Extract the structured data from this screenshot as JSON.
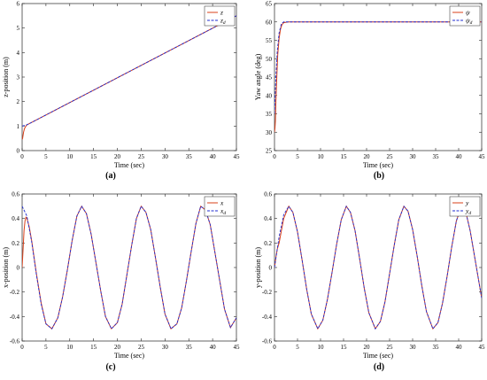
{
  "chart_data": [
    {
      "id": "a",
      "type": "line",
      "caption": "(a)",
      "xlabel": "Time (sec)",
      "ylabel": "z-position (m)",
      "xlim": [
        0,
        45
      ],
      "ylim": [
        0,
        6
      ],
      "xticks": [
        0,
        5,
        10,
        15,
        20,
        25,
        30,
        35,
        40,
        45
      ],
      "yticks": [
        0,
        1,
        2,
        3,
        4,
        5,
        6
      ],
      "grid": false,
      "legend_position": "top-right",
      "series": [
        {
          "name": "z",
          "legend": "z",
          "sub": "",
          "color": "#d9401a",
          "dash": "solid",
          "x": [
            0,
            0.1,
            0.3,
            0.5,
            0.8,
            1.0,
            1.5,
            2,
            45
          ],
          "y": [
            0.45,
            0.5,
            0.75,
            0.9,
            1.0,
            1.05,
            1.1,
            1.15,
            5.5
          ]
        },
        {
          "name": "z_d",
          "legend": "z",
          "sub": "d",
          "color": "#1f2bd1",
          "dash": "dash",
          "x": [
            0,
            1,
            2,
            45
          ],
          "y": [
            1.0,
            1.05,
            1.15,
            5.5
          ]
        }
      ]
    },
    {
      "id": "b",
      "type": "line",
      "caption": "(b)",
      "xlabel": "Time (sec)",
      "ylabel": "Yaw angle (deg)",
      "xlim": [
        0,
        45
      ],
      "ylim": [
        25,
        65
      ],
      "xticks": [
        0,
        5,
        10,
        15,
        20,
        25,
        30,
        35,
        40,
        45
      ],
      "yticks": [
        25,
        30,
        35,
        40,
        45,
        50,
        55,
        60,
        65
      ],
      "grid": false,
      "legend_position": "top-right",
      "series": [
        {
          "name": "psi",
          "legend": "ψ",
          "sub": "",
          "color": "#d9401a",
          "dash": "solid",
          "x": [
            0,
            0.1,
            0.2,
            0.3,
            0.5,
            0.7,
            1.0,
            1.3,
            1.6,
            2.0,
            3.0,
            45
          ],
          "y": [
            30,
            31,
            33,
            38,
            45,
            51,
            55.5,
            58,
            59.2,
            59.8,
            60,
            60
          ]
        },
        {
          "name": "psi_d",
          "legend": "ψ",
          "sub": "d",
          "color": "#1f2bd1",
          "dash": "dash",
          "x": [
            0,
            0.3,
            0.6,
            1.0,
            1.5,
            2.0,
            45
          ],
          "y": [
            35,
            45,
            52,
            57,
            59.5,
            60,
            60
          ]
        }
      ]
    },
    {
      "id": "c",
      "type": "line",
      "caption": "(c)",
      "xlabel": "Time (sec)",
      "ylabel": "x-position (m)",
      "xlim": [
        0,
        45
      ],
      "ylim": [
        -0.6,
        0.6
      ],
      "xticks": [
        0,
        5,
        10,
        15,
        20,
        25,
        30,
        35,
        40,
        45
      ],
      "yticks": [
        -0.6,
        -0.4,
        -0.2,
        0,
        0.2,
        0.4,
        0.6
      ],
      "grid": false,
      "legend_position": "top-right",
      "series": [
        {
          "name": "x",
          "legend": "x",
          "sub": "",
          "color": "#d9401a",
          "dash": "solid",
          "x": [
            0,
            0.2,
            0.4,
            0.6,
            0.8,
            1.0,
            1.5,
            2,
            3,
            4,
            5,
            6.25,
            7.5,
            8.5,
            9.5,
            10.5,
            11.5,
            12.5,
            13.5,
            14.5,
            15.5,
            16.5,
            17.5,
            18.75,
            20,
            21,
            22,
            23,
            24,
            25,
            26,
            27,
            28,
            29,
            30,
            31.25,
            32.5,
            33.5,
            34.5,
            35.5,
            36.5,
            37.5,
            38.5,
            39.5,
            40.5,
            41.5,
            42.5,
            43.75,
            45
          ],
          "y": [
            0.0,
            0.15,
            0.3,
            0.38,
            0.41,
            0.4,
            0.33,
            0.22,
            -0.05,
            -0.29,
            -0.46,
            -0.5,
            -0.41,
            -0.24,
            -0.02,
            0.22,
            0.42,
            0.5,
            0.44,
            0.27,
            0.04,
            -0.19,
            -0.4,
            -0.5,
            -0.45,
            -0.3,
            -0.06,
            0.18,
            0.4,
            0.5,
            0.45,
            0.31,
            0.08,
            -0.16,
            -0.38,
            -0.5,
            -0.46,
            -0.33,
            -0.11,
            0.13,
            0.36,
            0.5,
            0.47,
            0.35,
            0.12,
            -0.11,
            -0.34,
            -0.49,
            -0.41
          ]
        },
        {
          "name": "x_d",
          "legend": "x",
          "sub": "d",
          "color": "#1f2bd1",
          "dash": "dash",
          "x": [
            0,
            1,
            2,
            3,
            4,
            5,
            6.25,
            7.5,
            8.5,
            9.5,
            10.5,
            11.5,
            12.5,
            13.5,
            14.5,
            15.5,
            16.5,
            17.5,
            18.75,
            20,
            21,
            22,
            23,
            24,
            25,
            26,
            27,
            28,
            29,
            30,
            31.25,
            32.5,
            33.5,
            34.5,
            35.5,
            36.5,
            37.5,
            38.5,
            39.5,
            40.5,
            41.5,
            42.5,
            43.75,
            45
          ],
          "y": [
            0.5,
            0.42,
            0.21,
            -0.06,
            -0.3,
            -0.46,
            -0.5,
            -0.41,
            -0.24,
            -0.02,
            0.22,
            0.42,
            0.5,
            0.44,
            0.27,
            0.04,
            -0.19,
            -0.4,
            -0.5,
            -0.45,
            -0.3,
            -0.06,
            0.18,
            0.4,
            0.5,
            0.45,
            0.31,
            0.08,
            -0.16,
            -0.38,
            -0.5,
            -0.46,
            -0.33,
            -0.11,
            0.13,
            0.36,
            0.5,
            0.47,
            0.35,
            0.12,
            -0.11,
            -0.34,
            -0.49,
            -0.41
          ]
        }
      ]
    },
    {
      "id": "d",
      "type": "line",
      "caption": "(d)",
      "xlabel": "Time (sec)",
      "ylabel": "y-position (m)",
      "xlim": [
        0,
        45
      ],
      "ylim": [
        -0.6,
        0.6
      ],
      "xticks": [
        0,
        5,
        10,
        15,
        20,
        25,
        30,
        35,
        40,
        45
      ],
      "yticks": [
        -0.6,
        -0.4,
        -0.2,
        0,
        0.2,
        0.4,
        0.6
      ],
      "grid": false,
      "legend_position": "top-right",
      "series": [
        {
          "name": "y",
          "legend": "y",
          "sub": "",
          "color": "#d9401a",
          "dash": "solid",
          "x": [
            0,
            0.3,
            0.6,
            1.0,
            1.5,
            2,
            3.1,
            4,
            5,
            6,
            7,
            8,
            9.4,
            10.5,
            11.5,
            12.5,
            13.5,
            14.5,
            15.6,
            16.5,
            17.5,
            18.5,
            19.5,
            20.5,
            21.9,
            23,
            24,
            25,
            26,
            27,
            28.1,
            29,
            30,
            31,
            32,
            33,
            34.4,
            35.5,
            36.5,
            37.5,
            38.5,
            39.5,
            40.6,
            41.5,
            42.5,
            43.5,
            45
          ],
          "y": [
            0.0,
            0.08,
            0.15,
            0.2,
            0.3,
            0.4,
            0.5,
            0.45,
            0.29,
            0.06,
            -0.18,
            -0.38,
            -0.5,
            -0.43,
            -0.26,
            -0.04,
            0.19,
            0.39,
            0.5,
            0.45,
            0.3,
            0.07,
            -0.17,
            -0.37,
            -0.5,
            -0.44,
            -0.28,
            -0.05,
            0.18,
            0.39,
            0.5,
            0.46,
            0.31,
            0.09,
            -0.15,
            -0.36,
            -0.5,
            -0.45,
            -0.29,
            -0.07,
            0.17,
            0.38,
            0.5,
            0.46,
            0.3,
            0.08,
            -0.25
          ]
        },
        {
          "name": "y_d",
          "legend": "y",
          "sub": "d",
          "color": "#1f2bd1",
          "dash": "dash",
          "x": [
            0,
            1,
            2,
            3.1,
            4,
            5,
            6,
            7,
            8,
            9.4,
            10.5,
            11.5,
            12.5,
            13.5,
            14.5,
            15.6,
            16.5,
            17.5,
            18.5,
            19.5,
            20.5,
            21.9,
            23,
            24,
            25,
            26,
            27,
            28.1,
            29,
            30,
            31,
            32,
            33,
            34.4,
            35.5,
            36.5,
            37.5,
            38.5,
            39.5,
            40.6,
            41.5,
            42.5,
            43.5,
            45
          ],
          "y": [
            0.0,
            0.25,
            0.43,
            0.5,
            0.45,
            0.29,
            0.06,
            -0.18,
            -0.38,
            -0.5,
            -0.43,
            -0.26,
            -0.04,
            0.19,
            0.39,
            0.5,
            0.45,
            0.3,
            0.07,
            -0.17,
            -0.37,
            -0.5,
            -0.44,
            -0.28,
            -0.05,
            0.18,
            0.39,
            0.5,
            0.46,
            0.31,
            0.09,
            -0.15,
            -0.36,
            -0.5,
            -0.45,
            -0.29,
            -0.07,
            0.17,
            0.38,
            0.5,
            0.46,
            0.3,
            0.08,
            -0.25
          ]
        }
      ]
    }
  ]
}
